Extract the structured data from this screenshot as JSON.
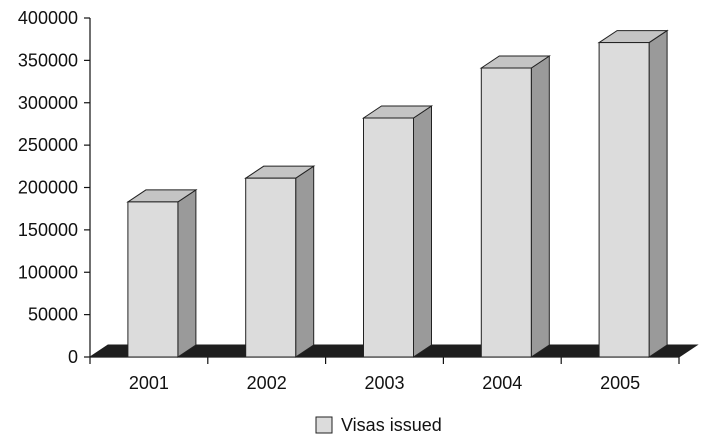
{
  "chart_data": {
    "type": "bar",
    "style": "3d",
    "categories": [
      "2001",
      "2002",
      "2003",
      "2004",
      "2005"
    ],
    "series": [
      {
        "name": "Visas issued",
        "values": [
          183000,
          211000,
          282000,
          341000,
          371000
        ]
      }
    ],
    "ylim": [
      0,
      400000
    ],
    "yticks": [
      "0",
      "50000",
      "100000",
      "150000",
      "200000",
      "250000",
      "300000",
      "350000",
      "400000"
    ],
    "grid": false,
    "legend_position": "bottom",
    "colors": {
      "bar_front": "#dcdcdc",
      "bar_side": "#9a9a9a",
      "bar_top": "#c4c4c4",
      "floor": "#1e1e1e",
      "axis": "#111111"
    }
  }
}
